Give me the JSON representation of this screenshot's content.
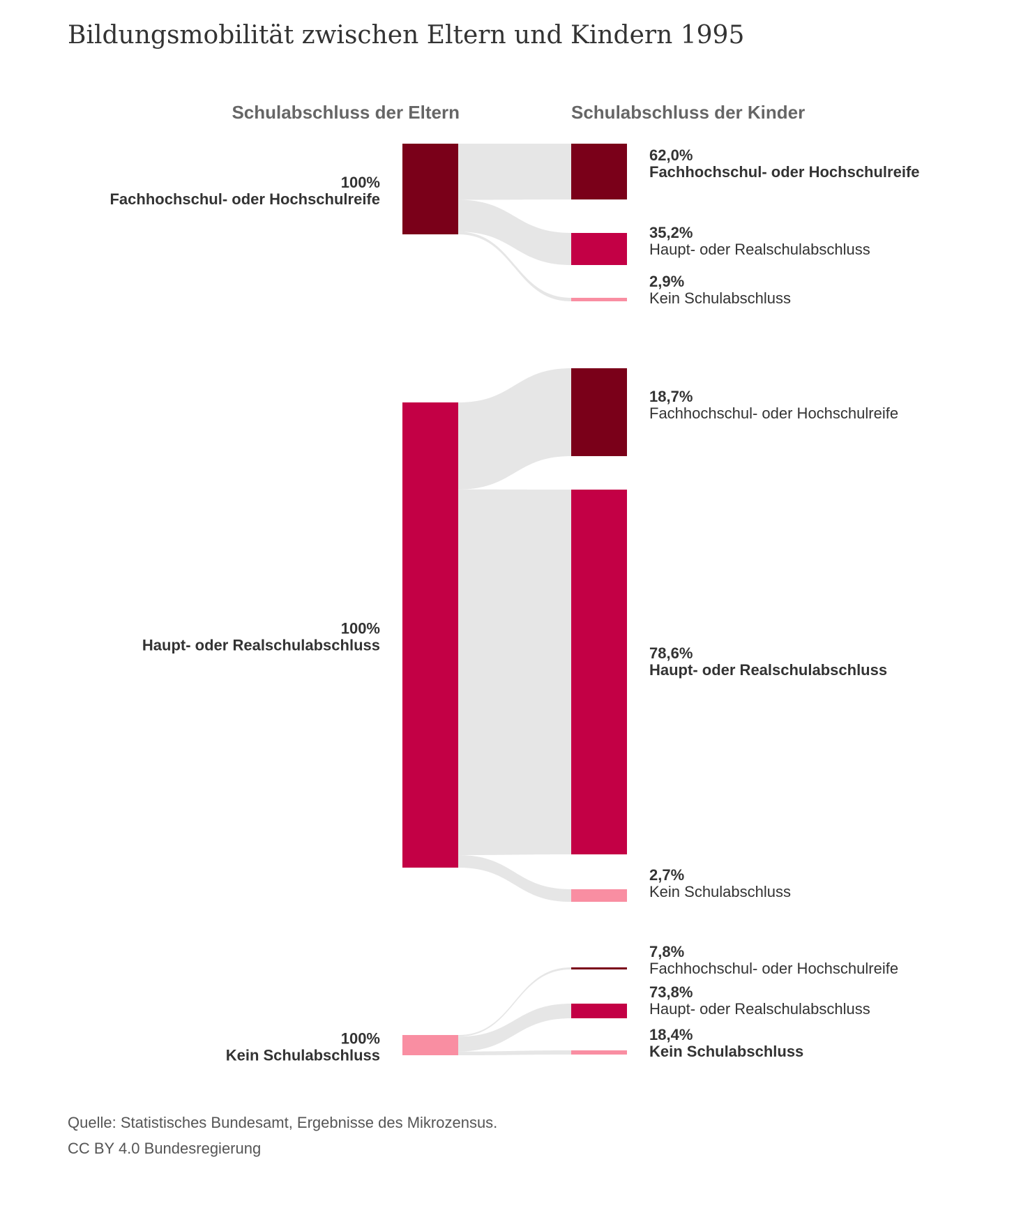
{
  "title": "Bildungsmobilität zwischen Eltern und Kindern 1995",
  "headers": {
    "left": "Schulabschluss der Eltern",
    "right": "Schulabschluss der Kinder"
  },
  "colors": {
    "Fachhochschul- oder Hochschulreife": "#7a0019",
    "Haupt- oder Realschulabschluss": "#c30045",
    "Kein Schulabschluss": "#f98ea2",
    "flow": "#e6e6e6"
  },
  "chart_data": {
    "type": "sankey",
    "sources": [
      {
        "name": "Fachhochschul- oder Hochschulreife",
        "share_label": "100%",
        "targets": [
          {
            "name": "Fachhochschul- oder Hochschulreife",
            "label": "62,0%",
            "value": 62.0,
            "bold": true
          },
          {
            "name": "Haupt- oder Realschulabschluss",
            "label": "35,2%",
            "value": 35.2,
            "bold": false
          },
          {
            "name": "Kein Schulabschluss",
            "label": "2,9%",
            "value": 2.9,
            "bold": false
          }
        ]
      },
      {
        "name": "Haupt- oder Realschulabschluss",
        "share_label": "100%",
        "targets": [
          {
            "name": "Fachhochschul- oder Hochschulreife",
            "label": "18,7%",
            "value": 18.7,
            "bold": false
          },
          {
            "name": "Haupt- oder Realschulabschluss",
            "label": "78,6%",
            "value": 78.6,
            "bold": true
          },
          {
            "name": "Kein Schulabschluss",
            "label": "2,7%",
            "value": 2.7,
            "bold": false
          }
        ]
      },
      {
        "name": "Kein Schulabschluss",
        "share_label": "100%",
        "targets": [
          {
            "name": "Fachhochschul- oder Hochschulreife",
            "label": "7,8%",
            "value": 7.8,
            "bold": false
          },
          {
            "name": "Haupt- oder Realschulabschluss",
            "label": "73,8%",
            "value": 73.8,
            "bold": false
          },
          {
            "name": "Kein Schulabschluss",
            "label": "18,4%",
            "value": 18.4,
            "bold": true
          }
        ]
      }
    ]
  },
  "footer": {
    "source": "Quelle: Statistisches Bundesamt, Ergebnisse des Mikrozensus.",
    "license": "CC BY 4.0 Bundesregierung"
  }
}
